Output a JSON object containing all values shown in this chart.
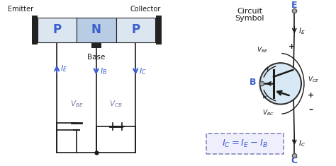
{
  "bg_color": "#ffffff",
  "blue": "#3a5fcd",
  "dark_blue": "#1a3399",
  "purple": "#7878aa",
  "gray_light": "#dce6f1",
  "gray_medium": "#b8cce4",
  "dark": "#1a1a1a",
  "border_dark": "#222222",
  "circuit_symbol_title_1": "Circuit",
  "circuit_symbol_title_2": "Symbol",
  "emitter_label": "Emitter",
  "collector_label": "Collector",
  "base_label": "Base",
  "p1_label": "P",
  "n_label": "N",
  "p2_label": "P",
  "E_label": "E",
  "B_label": "B",
  "C_label": "C"
}
